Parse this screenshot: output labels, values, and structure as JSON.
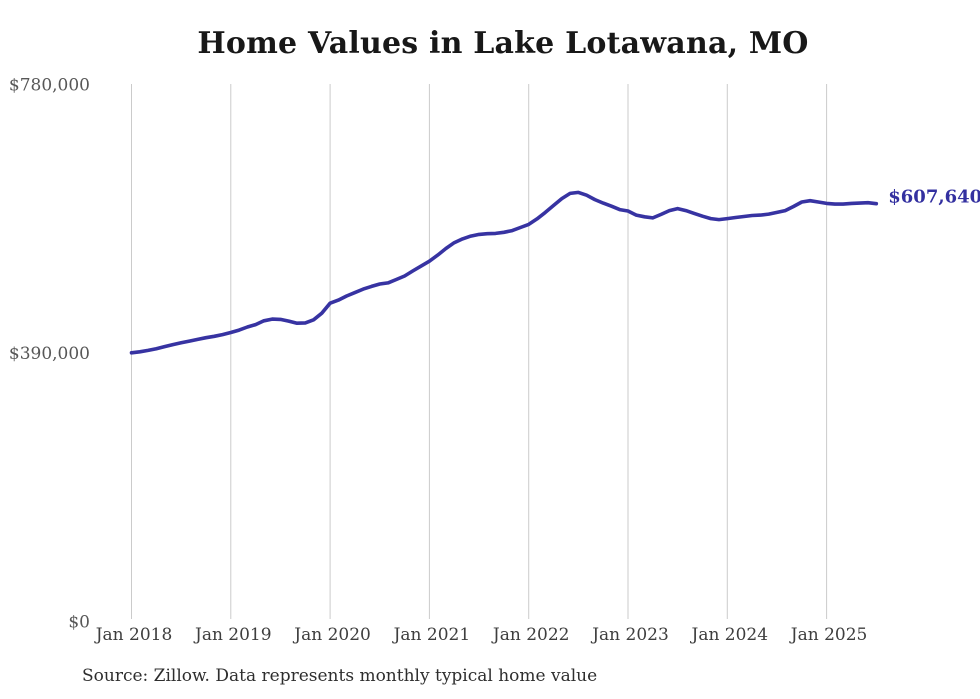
{
  "page": {
    "title": "Home Values in Lake Lotawana, MO",
    "source_note": "Source: Zillow. Data represents monthly typical home value"
  },
  "chart_data": {
    "type": "line",
    "title": "Home Values in Lake Lotawana, MO",
    "series_name": "Typical home value (USD)",
    "x_start": "Jan 2018",
    "x_end": "Jul 2025",
    "x_interval": "monthly",
    "values": [
      391000,
      392500,
      394500,
      397000,
      400000,
      403000,
      405500,
      408000,
      410500,
      413000,
      415000,
      417500,
      420500,
      424000,
      428500,
      432000,
      437500,
      440000,
      439500,
      437000,
      434000,
      434500,
      439000,
      448500,
      463000,
      467500,
      473500,
      478500,
      483500,
      487500,
      491000,
      492500,
      497500,
      502500,
      510000,
      517000,
      524000,
      533000,
      542500,
      551000,
      556500,
      560500,
      563000,
      564000,
      564500,
      566000,
      568500,
      573000,
      577500,
      585500,
      595000,
      605000,
      615000,
      622500,
      624000,
      620000,
      613500,
      608500,
      604000,
      599000,
      597000,
      591000,
      588500,
      587000,
      592000,
      597500,
      600500,
      597500,
      593500,
      589500,
      586000,
      584500,
      586000,
      587500,
      589000,
      590500,
      591000,
      592500,
      595000,
      597500,
      603500,
      610000,
      612000,
      610000,
      608000,
      607000,
      607000,
      608000,
      608500,
      609000,
      607640
    ],
    "last_value": 607640,
    "end_label": "$607,640",
    "ylim": [
      0,
      780000
    ],
    "yticks": [
      {
        "value": 0,
        "label": "$0"
      },
      {
        "value": 390000,
        "label": "$390,000"
      },
      {
        "value": 780000,
        "label": "$780,000"
      }
    ],
    "xticks": [
      "Jan 2018",
      "Jan 2019",
      "Jan 2020",
      "Jan 2021",
      "Jan 2022",
      "Jan 2023",
      "Jan 2024",
      "Jan 2025"
    ],
    "grid": "vertical-only",
    "legend": "none",
    "line_color": "#3733a2",
    "label_color": "#3330a0",
    "grid_color": "#cbcbcb"
  }
}
